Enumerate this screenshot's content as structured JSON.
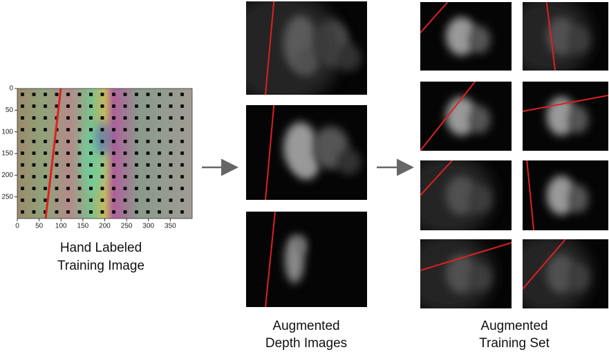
{
  "input_image": {
    "yticks": [
      0,
      50,
      100,
      150,
      200,
      250
    ],
    "xticks": [
      0,
      50,
      100,
      150,
      200,
      250,
      300,
      350
    ],
    "caption": [
      "Hand Labeled",
      "Training Image"
    ]
  },
  "augmented_depth": {
    "caption": [
      "Augmented",
      "Depth Images"
    ]
  },
  "training_set": {
    "caption": [
      "Augmented",
      "Training Set"
    ]
  }
}
